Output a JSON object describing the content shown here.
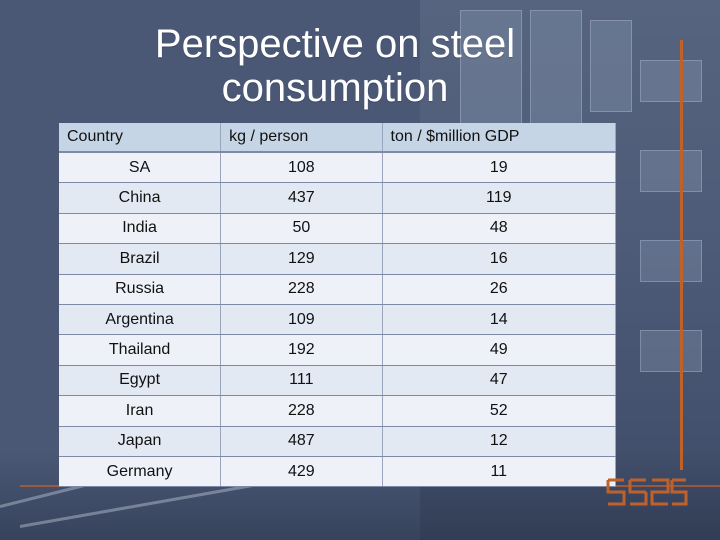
{
  "title": "Perspective on steel consumption",
  "table": {
    "headers": [
      "Country",
      "kg / person",
      "ton / $million GDP"
    ],
    "rows": [
      [
        "SA",
        "108",
        "19"
      ],
      [
        "China",
        "437",
        "119"
      ],
      [
        "India",
        "50",
        "48"
      ],
      [
        "Brazil",
        "129",
        "16"
      ],
      [
        "Russia",
        "228",
        "26"
      ],
      [
        "Argentina",
        "109",
        "14"
      ],
      [
        "Thailand",
        "192",
        "49"
      ],
      [
        "Egypt",
        "111",
        "47"
      ],
      [
        "Iran",
        "228",
        "52"
      ],
      [
        "Japan",
        "487",
        "12"
      ],
      [
        "Germany",
        "429",
        "11"
      ]
    ]
  },
  "logo": {
    "name": "seisa-logo",
    "text": "seisa"
  },
  "colors": {
    "accent": "#c0612a",
    "background": "#4a5876",
    "header": "#c6d5e6",
    "row": "#e2e9f3"
  }
}
